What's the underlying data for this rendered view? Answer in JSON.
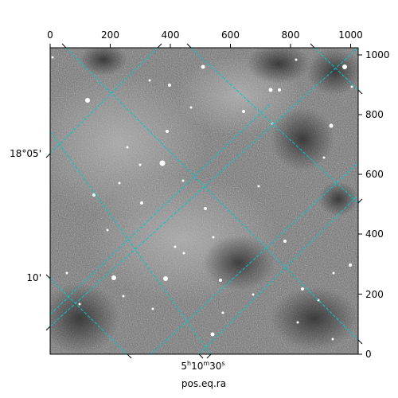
{
  "figure": {
    "xlabel": "pos.eq.ra",
    "ra_tick_label": {
      "h": "5",
      "m": "10",
      "s": "30"
    },
    "dec_tick_labels": [
      "18°05'",
      "10'"
    ],
    "top_ticks": [
      "0",
      "200",
      "400",
      "600",
      "800",
      "1000"
    ],
    "right_ticks": [
      "0",
      "200",
      "400",
      "600",
      "800",
      "1000"
    ],
    "grid_color": "#00c8c8",
    "image_type": "grayscale astronomical sky image"
  }
}
